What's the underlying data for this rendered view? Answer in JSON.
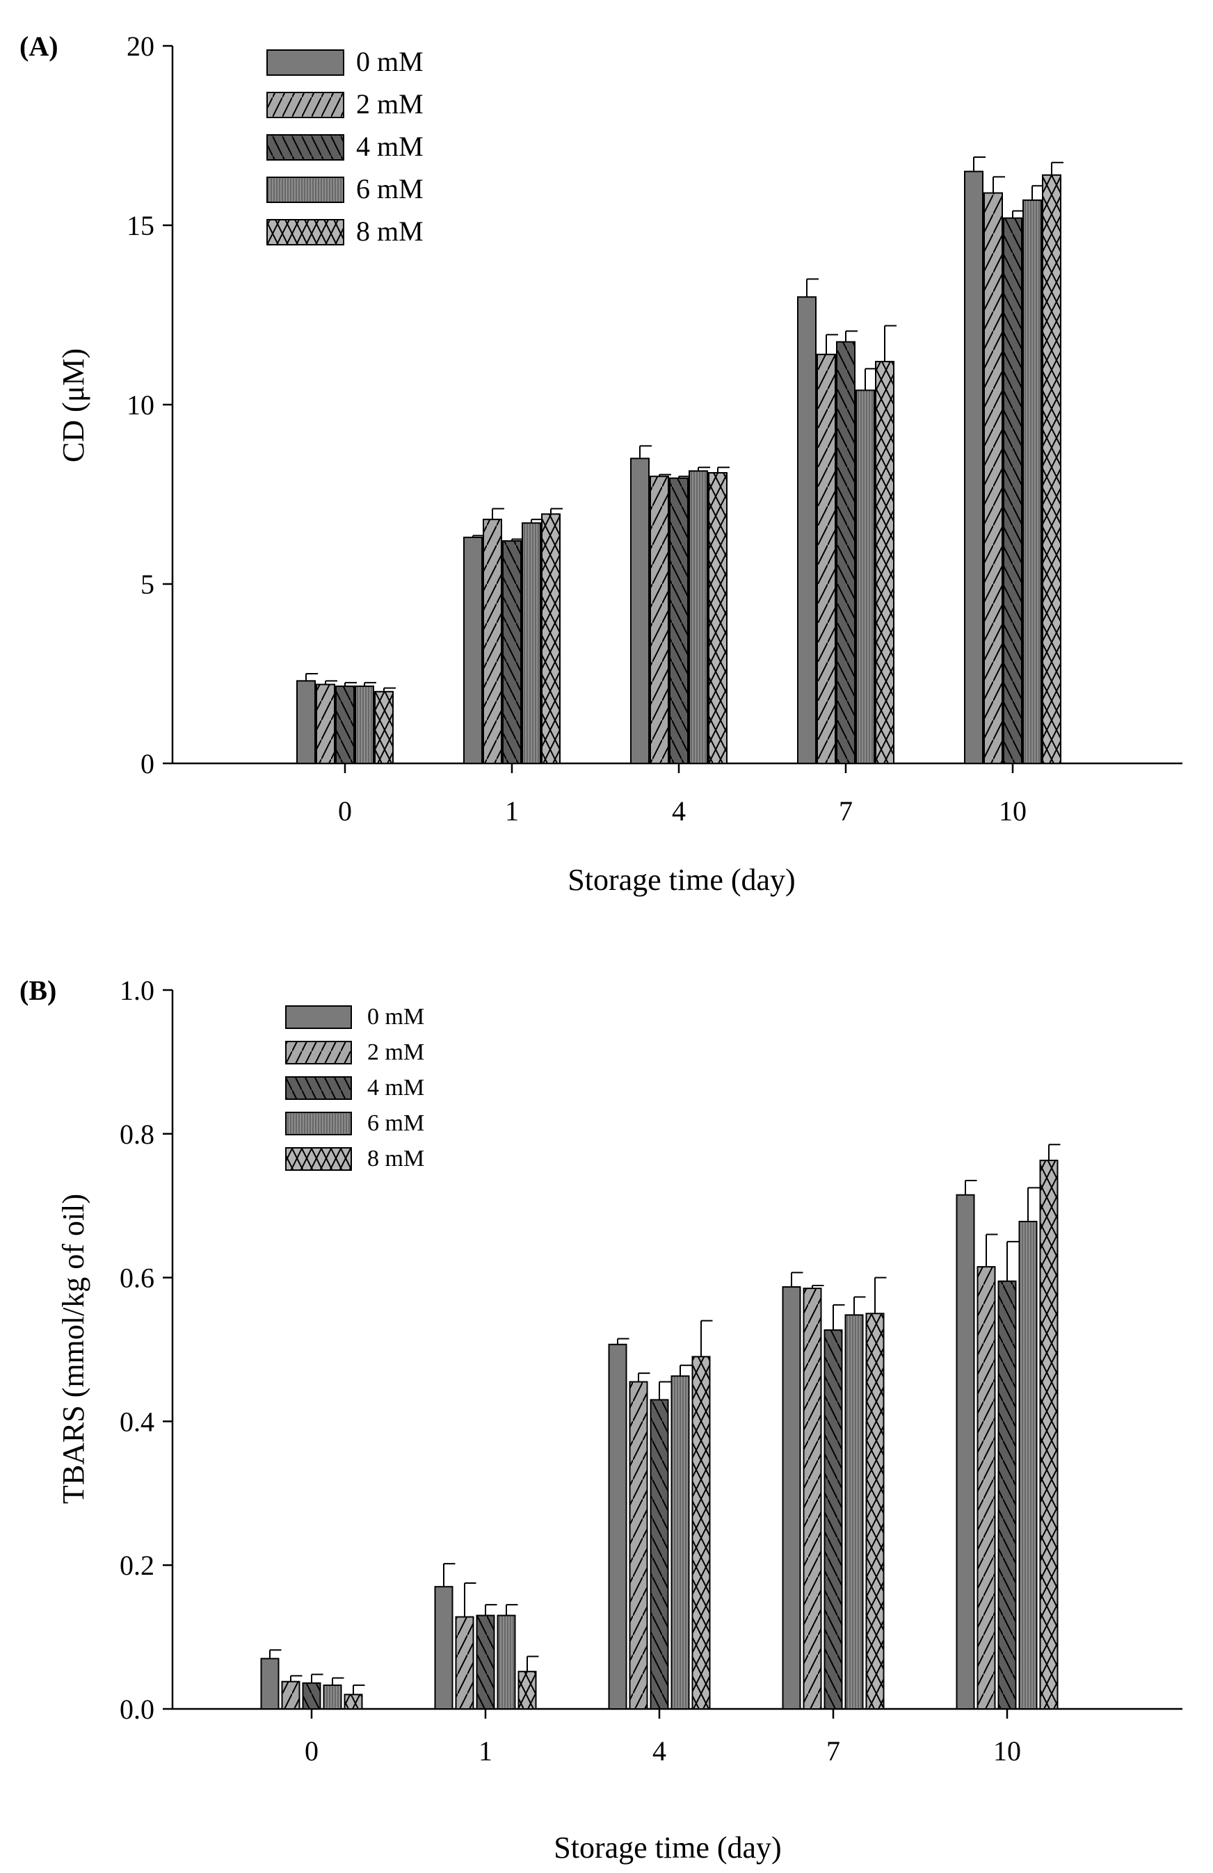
{
  "colors": {
    "bar_series": [
      "#7a7a7a",
      "#a8a8a8",
      "#5e5e5e",
      "#8c8c8c",
      "#b4b4b4"
    ],
    "axis": "#000000",
    "background": "#ffffff"
  },
  "chart_data": [
    {
      "panel_label": "(A)",
      "type": "bar",
      "title": "",
      "xlabel": "Storage time (day)",
      "ylabel": "CD (μM)",
      "categories": [
        "0",
        "1",
        "4",
        "7",
        "10"
      ],
      "ylim": [
        0,
        20
      ],
      "yticks": [
        0,
        5,
        10,
        15,
        20
      ],
      "ytick_labels": [
        "0",
        "5",
        "10",
        "15",
        "20"
      ],
      "legend_position": "top-left",
      "series": [
        {
          "name": "0 mM",
          "pattern": "solid",
          "values": [
            2.3,
            6.3,
            8.5,
            13.0,
            16.5
          ],
          "errors": [
            0.2,
            0.05,
            0.35,
            0.5,
            0.4
          ]
        },
        {
          "name": "2 mM",
          "pattern": "diag-right",
          "values": [
            2.2,
            6.8,
            8.0,
            11.4,
            15.9
          ],
          "errors": [
            0.1,
            0.3,
            0.05,
            0.55,
            0.45
          ]
        },
        {
          "name": "4 mM",
          "pattern": "diag-left",
          "values": [
            2.15,
            6.2,
            7.95,
            11.75,
            15.2
          ],
          "errors": [
            0.1,
            0.05,
            0.05,
            0.3,
            0.2
          ]
        },
        {
          "name": "6 mM",
          "pattern": "vertical",
          "values": [
            2.15,
            6.7,
            8.15,
            10.4,
            15.7
          ],
          "errors": [
            0.1,
            0.1,
            0.1,
            0.6,
            0.4
          ]
        },
        {
          "name": "8 mM",
          "pattern": "cross",
          "values": [
            2.0,
            6.95,
            8.1,
            11.2,
            16.4
          ],
          "errors": [
            0.1,
            0.15,
            0.15,
            1.0,
            0.35
          ]
        }
      ]
    },
    {
      "panel_label": "(B)",
      "type": "bar",
      "title": "",
      "xlabel": "Storage time (day)",
      "ylabel": "TBARS (mmol/kg of oil)",
      "categories": [
        "0",
        "1",
        "4",
        "7",
        "10"
      ],
      "ylim": [
        0,
        1.0
      ],
      "yticks": [
        0,
        0.2,
        0.4,
        0.6,
        0.8,
        1.0
      ],
      "ytick_labels": [
        "0.0",
        "0.2",
        "0.4",
        "0.6",
        "0.8",
        "1.0"
      ],
      "legend_position": "top-left",
      "series": [
        {
          "name": "0 mM",
          "pattern": "solid",
          "values": [
            0.07,
            0.17,
            0.507,
            0.587,
            0.715
          ],
          "errors": [
            0.012,
            0.032,
            0.008,
            0.02,
            0.02
          ]
        },
        {
          "name": "2 mM",
          "pattern": "diag-right",
          "values": [
            0.038,
            0.128,
            0.455,
            0.585,
            0.615
          ],
          "errors": [
            0.008,
            0.047,
            0.012,
            0.004,
            0.045
          ]
        },
        {
          "name": "4 mM",
          "pattern": "diag-left",
          "values": [
            0.036,
            0.13,
            0.43,
            0.527,
            0.595
          ],
          "errors": [
            0.012,
            0.015,
            0.025,
            0.035,
            0.055
          ]
        },
        {
          "name": "6 mM",
          "pattern": "vertical",
          "values": [
            0.033,
            0.13,
            0.463,
            0.548,
            0.678
          ],
          "errors": [
            0.01,
            0.015,
            0.015,
            0.025,
            0.047
          ]
        },
        {
          "name": "8 mM",
          "pattern": "cross",
          "values": [
            0.02,
            0.052,
            0.49,
            0.55,
            0.763
          ],
          "errors": [
            0.013,
            0.021,
            0.05,
            0.05,
            0.022
          ]
        }
      ]
    }
  ]
}
